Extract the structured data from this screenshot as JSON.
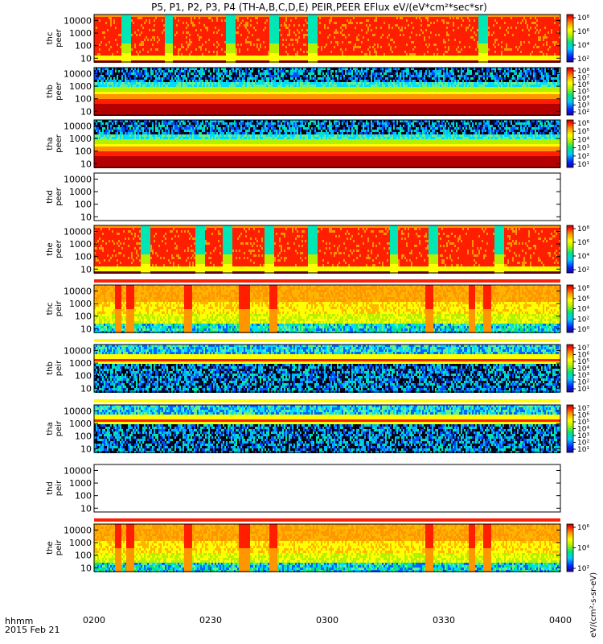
{
  "chart_data": {
    "type": "heatmap",
    "title": "P5, P1, P2, P3, P4 (TH-A,B,C,D,E) PEIR,PEER EFlux eV/(eV*cm²*sec*sr)",
    "x_title": "hhmm",
    "date_label": "2015 Feb 21",
    "x_ticks": [
      "0200",
      "0230",
      "0300",
      "0330",
      "0400"
    ],
    "x_range": [
      "02:00",
      "04:00"
    ],
    "y_ticks": [
      "10",
      "100",
      "1000",
      "10000"
    ],
    "y_scale": "log",
    "y_range": [
      5,
      30000
    ],
    "colorbar_label": "eV/(cm²-s-sr-eV)",
    "panels": [
      {
        "probe": "thc",
        "species": "peer",
        "line1": "thc",
        "line2": "peer",
        "cbar_ticks": [
          "10⁸",
          "10⁶",
          "10⁴",
          "10²"
        ],
        "kind": "e_active",
        "colorbar": true
      },
      {
        "probe": "thb",
        "species": "peer",
        "line1": "thb",
        "line2": "peer",
        "cbar_ticks": [
          "10⁸",
          "10⁷",
          "10⁶",
          "10⁵",
          "10⁴",
          "10³",
          "10²"
        ],
        "kind": "band",
        "colorbar": true
      },
      {
        "probe": "tha",
        "species": "peer",
        "line1": "tha",
        "line2": "peer",
        "cbar_ticks": [
          "10⁶",
          "10⁵",
          "10⁴",
          "10³",
          "10²",
          "10¹"
        ],
        "kind": "band",
        "colorbar": true
      },
      {
        "probe": "thd",
        "species": "peer",
        "line1": "thd",
        "line2": "peer",
        "cbar_ticks": [],
        "kind": "empty",
        "colorbar": false
      },
      {
        "probe": "the",
        "species": "peer",
        "line1": "the",
        "line2": "peer",
        "cbar_ticks": [
          "10⁸",
          "10⁶",
          "10⁴",
          "10²"
        ],
        "kind": "e_active",
        "colorbar": true
      },
      {
        "probe": "thc",
        "species": "peir",
        "line1": "thc",
        "line2": "peir",
        "cbar_ticks": [
          "10⁸",
          "10⁶",
          "10⁴",
          "10²",
          "10⁰"
        ],
        "kind": "ion",
        "colorbar": true
      },
      {
        "probe": "thb",
        "species": "peir",
        "line1": "thb",
        "line2": "peir",
        "cbar_ticks": [
          "10⁷",
          "10⁶",
          "10⁵",
          "10⁴",
          "10³",
          "10²",
          "10¹"
        ],
        "kind": "ion_band",
        "colorbar": true
      },
      {
        "probe": "tha",
        "species": "peir",
        "line1": "tha",
        "line2": "peir",
        "cbar_ticks": [
          "10⁷",
          "10⁶",
          "10⁵",
          "10⁴",
          "10³",
          "10²",
          "10¹"
        ],
        "kind": "ion_band",
        "colorbar": true
      },
      {
        "probe": "thd",
        "species": "peir",
        "line1": "thd",
        "line2": "peir",
        "cbar_ticks": [],
        "kind": "empty",
        "colorbar": false
      },
      {
        "probe": "the",
        "species": "peir",
        "line1": "the",
        "line2": "peir",
        "cbar_ticks": [
          "10⁶",
          "10⁴",
          "10²"
        ],
        "kind": "ion",
        "colorbar": true
      }
    ]
  }
}
